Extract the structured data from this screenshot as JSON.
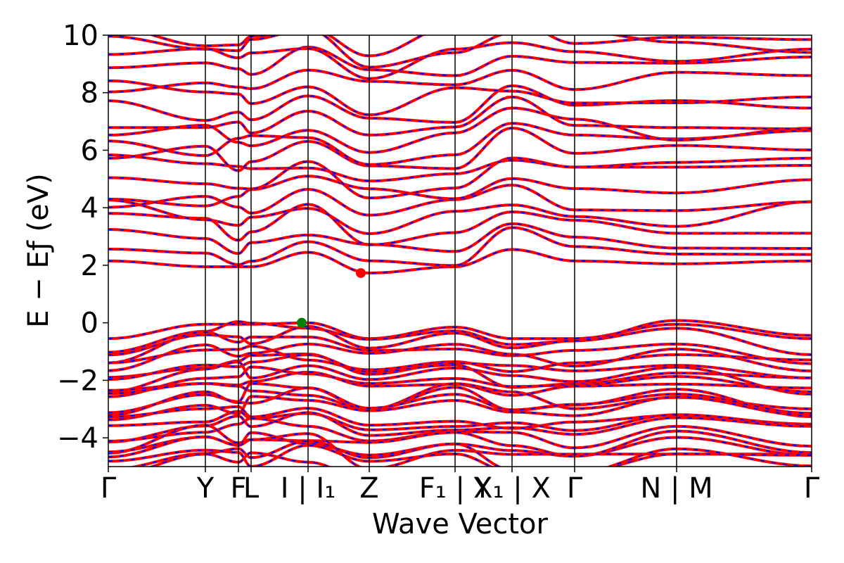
{
  "chart_data": {
    "type": "line",
    "title": "",
    "xlabel": "Wave Vector",
    "ylabel": "E − Eƒ (eV)",
    "ylim": [
      -5,
      10
    ],
    "grid": false,
    "y_ticks": [
      "−4",
      "−2",
      "0",
      "2",
      "4",
      "6",
      "8",
      "10"
    ],
    "y_tick_values": [
      -4,
      -2,
      0,
      2,
      4,
      6,
      8,
      10
    ],
    "x_ticks": [
      {
        "label": "Γ",
        "x": 0.0
      },
      {
        "label": "Y",
        "x": 0.138
      },
      {
        "label": "F",
        "x": 0.185
      },
      {
        "label": "L",
        "x": 0.203
      },
      {
        "label": "I | I₁",
        "x": 0.284
      },
      {
        "label": "Z",
        "x": 0.371
      },
      {
        "label": "F₁ | Y",
        "x": 0.493
      },
      {
        "label": "X₁ | X",
        "x": 0.574
      },
      {
        "label": "Γ",
        "x": 0.663
      },
      {
        "label": "N | M",
        "x": 0.808
      },
      {
        "label": "Γ",
        "x": 1.0
      }
    ],
    "band_colors": {
      "solid": "#ff0000",
      "dashed": "#0000ff"
    },
    "special_points": [
      {
        "name": "VBM",
        "x": 0.275,
        "y": 0.0,
        "color": "#008000"
      },
      {
        "name": "CBM",
        "x": 0.359,
        "y": 1.73,
        "color": "#ff0000"
      }
    ],
    "conduction_band_min": [
      2.15,
      1.95,
      1.95,
      1.95,
      2.45,
      1.73,
      1.95,
      2.55,
      2.15,
      2.05,
      2.15
    ],
    "valence_band_max": [
      -0.55,
      -0.05,
      -0.05,
      -0.05,
      0.0,
      -0.55,
      -0.15,
      -0.55,
      -0.55,
      -0.05,
      -0.55
    ]
  }
}
